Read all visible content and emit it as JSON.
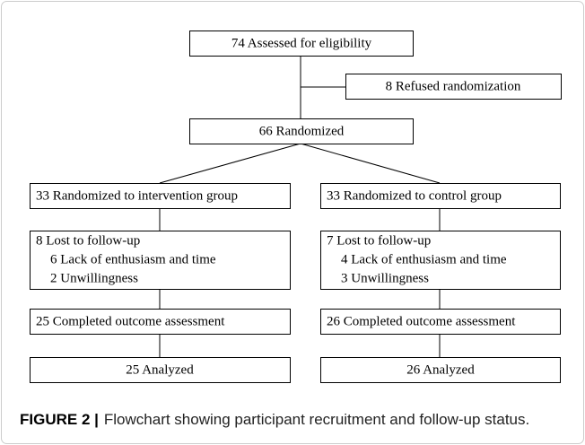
{
  "nodes": [
    {
      "lines": [
        "74 Assessed for eligibility"
      ]
    },
    {
      "lines": [
        "8 Refused randomization"
      ]
    },
    {
      "lines": [
        "66 Randomized"
      ]
    },
    {
      "lines": [
        "33 Randomized to intervention group"
      ]
    },
    {
      "lines": [
        "33 Randomized to control group"
      ]
    },
    {
      "lines": [
        "8 Lost to follow-up",
        "6 Lack of enthusiasm and time",
        "2 Unwillingness"
      ]
    },
    {
      "lines": [
        "7 Lost to follow-up",
        "4 Lack of enthusiasm and time",
        "3 Unwillingness"
      ]
    },
    {
      "lines": [
        "25 Completed outcome assessment"
      ]
    },
    {
      "lines": [
        "26 Completed outcome assessment"
      ]
    },
    {
      "lines": [
        "25 Analyzed"
      ]
    },
    {
      "lines": [
        "26 Analyzed"
      ]
    }
  ],
  "caption": {
    "label": "FIGURE 2 |",
    "text": "Flowchart showing participant recruitment and follow-up status."
  }
}
